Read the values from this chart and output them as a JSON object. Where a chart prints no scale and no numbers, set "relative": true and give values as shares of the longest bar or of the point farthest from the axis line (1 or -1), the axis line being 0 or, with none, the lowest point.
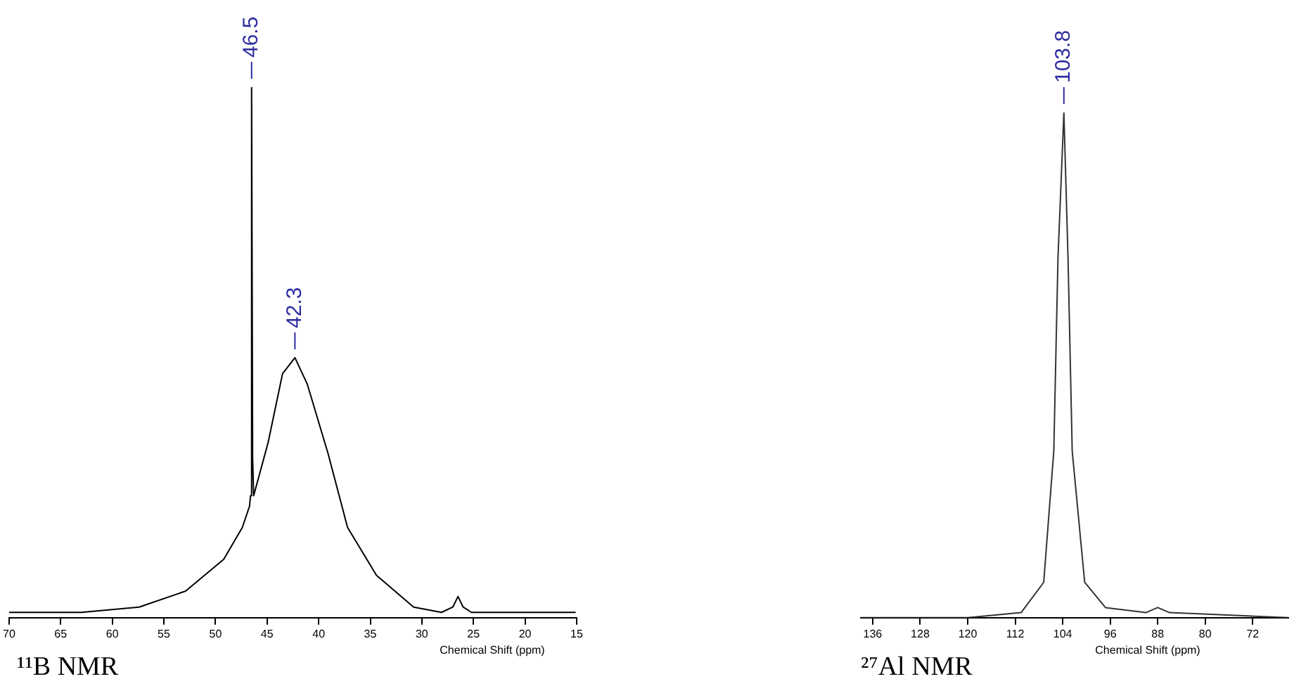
{
  "chart_data": [
    {
      "type": "line",
      "title": "¹¹B NMR",
      "xlabel": "Chemical Shift (ppm)",
      "relative": true,
      "marker": "none",
      "grid": false,
      "legend": false,
      "xlim": [
        70,
        15
      ],
      "xticks": [
        70,
        65,
        60,
        55,
        50,
        45,
        40,
        35,
        30,
        25,
        20,
        15
      ],
      "series": [
        {
          "color": "#000000",
          "x": [
            70,
            69.4,
            63,
            57.4,
            52.9,
            49.2,
            47.4,
            46.7,
            46.6,
            46.5,
            46.4,
            46.3,
            44.9,
            43.5,
            42.3,
            41.1,
            39.1,
            37.2,
            34.4,
            30.8,
            28.1,
            27,
            26.5,
            26,
            25.2,
            20,
            15.1
          ],
          "values": [
            0.01,
            0.01,
            0.01,
            0.02,
            0.05,
            0.11,
            0.17,
            0.21,
            0.23,
            1.0,
            0.3,
            0.23,
            0.33,
            0.46,
            0.49,
            0.44,
            0.31,
            0.17,
            0.08,
            0.02,
            0.01,
            0.02,
            0.04,
            0.02,
            0.01,
            0.01,
            0.01
          ]
        }
      ],
      "annotations": [
        {
          "text": "46.5",
          "x": 46.5,
          "y": 1.0
        },
        {
          "text": "42.3",
          "x": 42.3,
          "y": 0.49
        }
      ]
    },
    {
      "type": "line",
      "title": "²⁷Al NMR",
      "xlabel": "Chemical Shift (ppm)",
      "relative": true,
      "marker": "none",
      "grid": false,
      "legend": false,
      "xlim": [
        138,
        66
      ],
      "xticks": [
        136,
        128,
        120,
        112,
        104,
        96,
        88,
        80,
        72
      ],
      "series": [
        {
          "color": "#333333",
          "x": [
            138,
            120,
            111,
            107.2,
            105.5,
            104.8,
            103.8,
            103.1,
            102.4,
            100.3,
            96.8,
            90,
            88,
            86,
            66
          ],
          "values": [
            0,
            0,
            0.01,
            0.07,
            0.33,
            0.71,
            1.0,
            0.71,
            0.33,
            0.07,
            0.02,
            0.01,
            0.02,
            0.01,
            0
          ]
        }
      ],
      "annotations": [
        {
          "text": "103.8",
          "x": 103.8,
          "y": 1.0
        }
      ]
    }
  ]
}
